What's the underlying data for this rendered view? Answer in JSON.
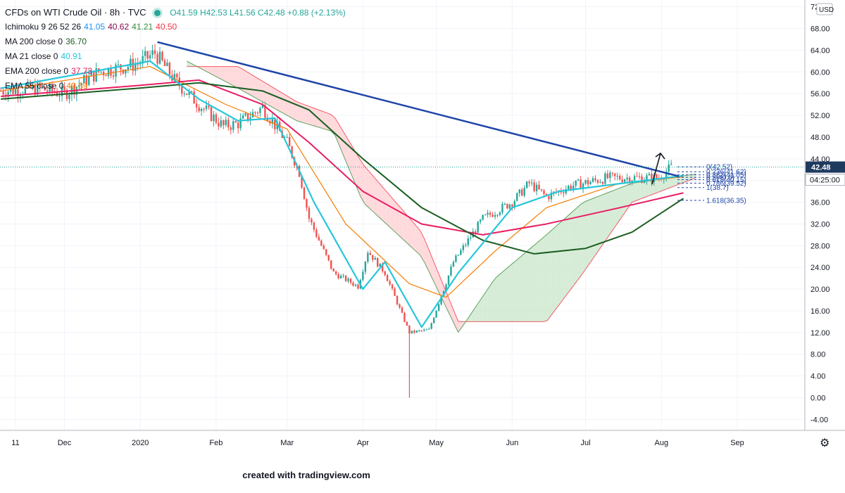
{
  "header": {
    "title": "CFDs on WTI Crude Oil · 8h · TVC",
    "ohlc": "O41.59 H42.53 L41.56 C42.48 +0.88 (+2.13%)"
  },
  "indicators": [
    {
      "id": "ichimoku",
      "label": "Ichimoku 9 26 52 26",
      "values": [
        {
          "text": "41.05",
          "color": "#2196f3"
        },
        {
          "text": "40.62",
          "color": "#880e4f"
        },
        {
          "text": "41.21",
          "color": "#388e3c"
        },
        {
          "text": "40.50",
          "color": "#f23645"
        }
      ]
    },
    {
      "id": "ma200",
      "label": "MA 200 close 0",
      "values": [
        {
          "text": "36.70",
          "color": "#1b5e20"
        }
      ]
    },
    {
      "id": "ma21",
      "label": "MA 21 close 0",
      "values": [
        {
          "text": "40.91",
          "color": "#26c6da"
        }
      ]
    },
    {
      "id": "ema200",
      "label": "EMA 200 close 0",
      "values": [
        {
          "text": "37.73",
          "color": "#e91e63"
        }
      ]
    },
    {
      "id": "ema55",
      "label": "EMA 55 close 0",
      "values": [
        {
          "text": "40.69",
          "color": "#f57c00"
        }
      ]
    }
  ],
  "price_axis": {
    "currency": "USD",
    "ticks": [
      "-4.00",
      "0.00",
      "4.00",
      "8.00",
      "12.00",
      "16.00",
      "20.00",
      "24.00",
      "28.00",
      "32.00",
      "36.00",
      "40.00",
      "44.00",
      "48.00",
      "52.00",
      "56.00",
      "60.00",
      "64.00",
      "68.00",
      "72.00"
    ],
    "last_price": "42.48",
    "countdown": "04:25:00"
  },
  "time_axis": [
    "11",
    "Dec",
    "2020",
    "Feb",
    "Mar",
    "Apr",
    "May",
    "Jun",
    "Jul",
    "Aug",
    "Sep"
  ],
  "fib_levels": [
    {
      "text": "0(42.52)",
      "value": 42.52
    },
    {
      "text": "0.236(41.62)",
      "value": 41.62
    },
    {
      "text": "0.382(41.05)",
      "value": 41.05
    },
    {
      "text": "0.5(40.6)",
      "value": 40.6
    },
    {
      "text": "0.618(40.15)",
      "value": 40.15
    },
    {
      "text": "0.786(39.52)",
      "value": 39.52
    },
    {
      "text": "1(38.7)",
      "value": 38.7
    },
    {
      "text": "1.618(36.35)",
      "value": 36.35
    }
  ],
  "footer": "created with tradingview.com",
  "colors": {
    "candle_up": "#26a69a",
    "candle_down": "#ef5350",
    "trendline": "#1e44a8",
    "ma200": "#1b5e20",
    "ma21": "#26c6da",
    "ema200": "#e91e63",
    "ema55": "#f57c00",
    "tenkan": "#2196f3",
    "kijun": "#880e4f",
    "span_a": "#388e3c",
    "span_b": "#f23645",
    "cloud_bull": "#c8e6c9",
    "cloud_bear": "#ffcdd2",
    "last_price_bg": "#1e3a5f"
  },
  "chart_data": {
    "type": "candlestick",
    "title": "CFDs on WTI Crude Oil",
    "interval": "8h",
    "ylim": [
      -4,
      72
    ],
    "last_close": 42.48,
    "price_path": [
      {
        "d": "2019-11-05",
        "p": 56.5
      },
      {
        "d": "2019-11-20",
        "p": 57.0
      },
      {
        "d": "2019-12-01",
        "p": 56.0
      },
      {
        "d": "2019-12-15",
        "p": 60.0
      },
      {
        "d": "2019-12-31",
        "p": 61.5
      },
      {
        "d": "2020-01-07",
        "p": 63.5
      },
      {
        "d": "2020-01-15",
        "p": 58.5
      },
      {
        "d": "2020-01-25",
        "p": 54.0
      },
      {
        "d": "2020-02-04",
        "p": 50.0
      },
      {
        "d": "2020-02-10",
        "p": 50.5
      },
      {
        "d": "2020-02-20",
        "p": 53.5
      },
      {
        "d": "2020-03-01",
        "p": 47.0
      },
      {
        "d": "2020-03-06",
        "p": 41.5
      },
      {
        "d": "2020-03-10",
        "p": 33.0
      },
      {
        "d": "2020-03-20",
        "p": 23.0
      },
      {
        "d": "2020-03-30",
        "p": 20.5
      },
      {
        "d": "2020-04-03",
        "p": 27.0
      },
      {
        "d": "2020-04-10",
        "p": 23.0
      },
      {
        "d": "2020-04-20",
        "p": 12.0
      },
      {
        "d": "2020-04-28",
        "p": 12.5
      },
      {
        "d": "2020-05-08",
        "p": 25.0
      },
      {
        "d": "2020-05-20",
        "p": 33.0
      },
      {
        "d": "2020-06-01",
        "p": 36.0
      },
      {
        "d": "2020-06-08",
        "p": 39.5
      },
      {
        "d": "2020-06-15",
        "p": 37.0
      },
      {
        "d": "2020-06-25",
        "p": 39.0
      },
      {
        "d": "2020-07-10",
        "p": 40.5
      },
      {
        "d": "2020-07-31",
        "p": 40.5
      },
      {
        "d": "2020-08-05",
        "p": 42.48
      }
    ],
    "spike_low": {
      "d": "2020-04-20",
      "p": 0.0
    },
    "ma200": [
      {
        "d": "2019-11-05",
        "p": 55.0
      },
      {
        "d": "2019-12-31",
        "p": 57.0
      },
      {
        "d": "2020-01-25",
        "p": 58.0
      },
      {
        "d": "2020-02-20",
        "p": 56.5
      },
      {
        "d": "2020-03-10",
        "p": 53.0
      },
      {
        "d": "2020-04-01",
        "p": 44.0
      },
      {
        "d": "2020-04-25",
        "p": 35.0
      },
      {
        "d": "2020-05-20",
        "p": 29.0
      },
      {
        "d": "2020-06-10",
        "p": 26.5
      },
      {
        "d": "2020-07-01",
        "p": 27.5
      },
      {
        "d": "2020-07-20",
        "p": 30.5
      },
      {
        "d": "2020-08-10",
        "p": 36.7
      }
    ],
    "ema200": [
      {
        "d": "2019-11-05",
        "p": 55.5
      },
      {
        "d": "2019-12-31",
        "p": 57.5
      },
      {
        "d": "2020-01-25",
        "p": 58.5
      },
      {
        "d": "2020-02-20",
        "p": 54.0
      },
      {
        "d": "2020-03-10",
        "p": 47.0
      },
      {
        "d": "2020-04-01",
        "p": 38.0
      },
      {
        "d": "2020-04-25",
        "p": 32.0
      },
      {
        "d": "2020-05-20",
        "p": 30.0
      },
      {
        "d": "2020-06-15",
        "p": 32.0
      },
      {
        "d": "2020-07-15",
        "p": 35.0
      },
      {
        "d": "2020-08-10",
        "p": 37.73
      }
    ],
    "ema55": [
      {
        "d": "2019-11-05",
        "p": 56.5
      },
      {
        "d": "2020-01-05",
        "p": 61.0
      },
      {
        "d": "2020-02-05",
        "p": 54.0
      },
      {
        "d": "2020-03-01",
        "p": 49.5
      },
      {
        "d": "2020-03-25",
        "p": 32.0
      },
      {
        "d": "2020-04-20",
        "p": 21.0
      },
      {
        "d": "2020-05-05",
        "p": 18.5
      },
      {
        "d": "2020-05-25",
        "p": 27.0
      },
      {
        "d": "2020-06-15",
        "p": 35.0
      },
      {
        "d": "2020-07-15",
        "p": 39.5
      },
      {
        "d": "2020-08-10",
        "p": 40.69
      }
    ],
    "ma21": [
      {
        "d": "2019-11-05",
        "p": 57.0
      },
      {
        "d": "2020-01-05",
        "p": 62.0
      },
      {
        "d": "2020-01-25",
        "p": 55.0
      },
      {
        "d": "2020-02-10",
        "p": 51.0
      },
      {
        "d": "2020-02-25",
        "p": 51.5
      },
      {
        "d": "2020-03-12",
        "p": 36.0
      },
      {
        "d": "2020-04-01",
        "p": 20.0
      },
      {
        "d": "2020-04-10",
        "p": 25.0
      },
      {
        "d": "2020-04-25",
        "p": 13.0
      },
      {
        "d": "2020-05-10",
        "p": 23.0
      },
      {
        "d": "2020-06-01",
        "p": 35.0
      },
      {
        "d": "2020-06-20",
        "p": 38.0
      },
      {
        "d": "2020-08-10",
        "p": 40.91
      }
    ],
    "cloud": [
      {
        "d": "2020-01-20",
        "a": 62.0,
        "b": 61.0
      },
      {
        "d": "2020-02-10",
        "a": 57.0,
        "b": 61.0
      },
      {
        "d": "2020-03-05",
        "a": 51.0,
        "b": 54.5
      },
      {
        "d": "2020-03-20",
        "a": 49.0,
        "b": 52.0
      },
      {
        "d": "2020-04-01",
        "a": 36.0,
        "b": 43.0
      },
      {
        "d": "2020-04-25",
        "a": 26.0,
        "b": 30.5
      },
      {
        "d": "2020-05-10",
        "a": 12.0,
        "b": 14.0
      },
      {
        "d": "2020-05-25",
        "a": 22.0,
        "b": 14.0
      },
      {
        "d": "2020-06-15",
        "a": 30.0,
        "b": 14.0
      },
      {
        "d": "2020-06-30",
        "a": 36.0,
        "b": 23.0
      },
      {
        "d": "2020-07-20",
        "a": 39.5,
        "b": 36.0
      },
      {
        "d": "2020-08-15",
        "a": 41.2,
        "b": 40.5
      }
    ],
    "trendline": [
      {
        "d": "2020-01-08",
        "p": 65.5
      },
      {
        "d": "2020-08-08",
        "p": 40.8
      }
    ]
  }
}
